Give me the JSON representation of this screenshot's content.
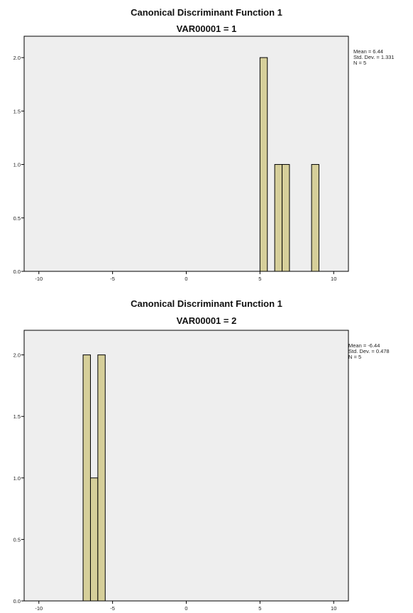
{
  "chart_data": [
    {
      "type": "bar",
      "title": "Canonical Discriminant Function 1",
      "subtitle": "VAR00001 = 1",
      "xlim": [
        -11,
        11
      ],
      "ylim": [
        0,
        2.2
      ],
      "x_ticks": [
        -10,
        -5,
        0,
        5,
        10
      ],
      "y_ticks": [
        0.0,
        0.5,
        1.0,
        1.5,
        2.0
      ],
      "bin_width": 0.5,
      "bins": [
        {
          "start": 5.0,
          "end": 5.5,
          "value": 2
        },
        {
          "start": 6.0,
          "end": 6.5,
          "value": 1
        },
        {
          "start": 6.5,
          "end": 7.0,
          "value": 1
        },
        {
          "start": 8.5,
          "end": 9.0,
          "value": 1
        }
      ],
      "stats": {
        "mean": "Mean = 6.44",
        "sd": "Std. Dev. = 1.331",
        "n": "N = 5"
      },
      "bar_color": "#d6cf9a",
      "plot_bg": "#eeeeee"
    },
    {
      "type": "bar",
      "title": "Canonical Discriminant Function 1",
      "subtitle": "VAR00001 = 2",
      "xlim": [
        -11,
        11
      ],
      "ylim": [
        0,
        2.2
      ],
      "x_ticks": [
        -10,
        -5,
        0,
        5,
        10
      ],
      "y_ticks": [
        0.0,
        0.5,
        1.0,
        1.5,
        2.0
      ],
      "bin_width": 0.5,
      "bins": [
        {
          "start": -7.0,
          "end": -6.5,
          "value": 2
        },
        {
          "start": -6.5,
          "end": -6.0,
          "value": 1
        },
        {
          "start": -6.0,
          "end": -5.5,
          "value": 2
        }
      ],
      "stats": {
        "mean": "Mean = -6.44",
        "sd": "Std. Dev. = 0.478",
        "n": "N = 5"
      },
      "bar_color": "#d6cf9a",
      "plot_bg": "#eeeeee"
    }
  ]
}
